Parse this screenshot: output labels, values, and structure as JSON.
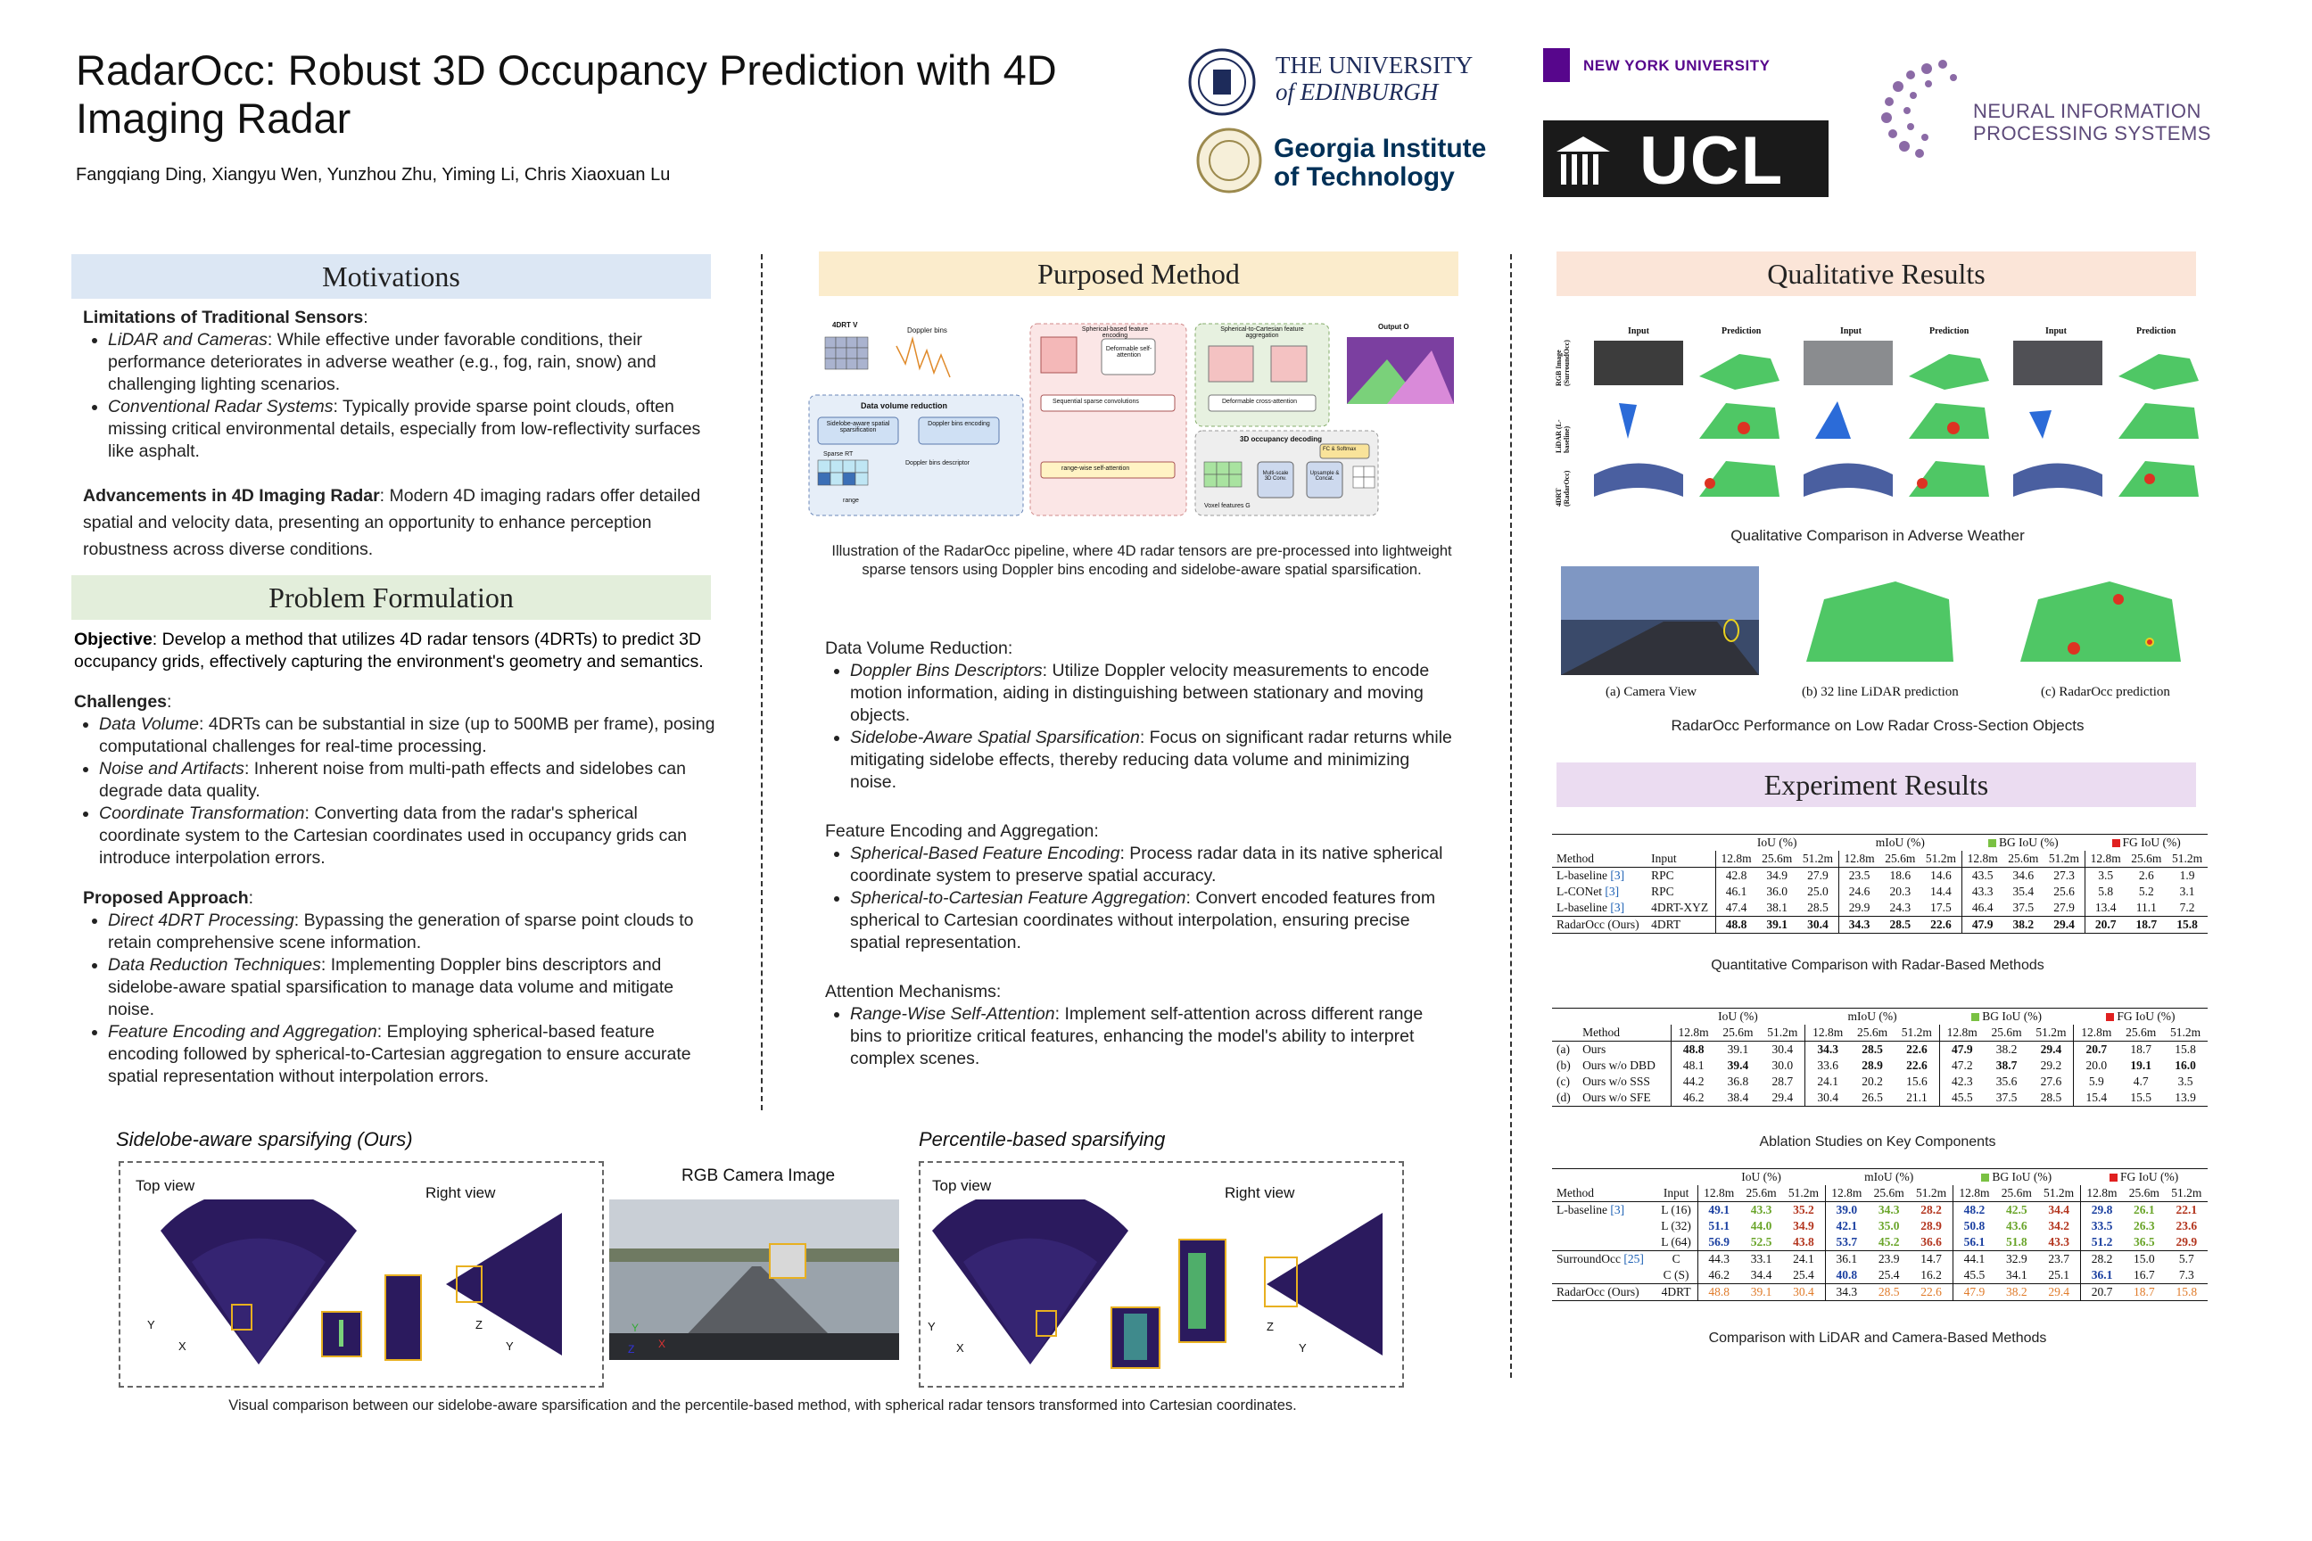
{
  "header": {
    "title": "RadarOcc: Robust 3D Occupancy Prediction with 4D Imaging Radar",
    "authors": "Fangqiang Ding, Xiangyu Wen, Yunzhou Zhu, Yiming Li, Chris Xiaoxuan Lu",
    "logos": {
      "edinburgh_line1": "THE UNIVERSITY",
      "edinburgh_line2": "of EDINBURGH",
      "nyu": "NEW YORK UNIVERSITY",
      "neurips_line1": "NEURAL INFORMATION",
      "neurips_line2": "PROCESSING SYSTEMS",
      "gatech_line1": "Georgia Institute",
      "gatech_line2": "of Technology",
      "ucl": "UCL"
    }
  },
  "motivations": {
    "heading": "Motivations",
    "limitations_title": "Limitations of Traditional Sensors",
    "lidar_term": "LiDAR and Cameras",
    "lidar_text": ": While effective under favorable conditions, their performance deteriorates in adverse weather (e.g., fog, rain, snow) and challenging lighting scenarios.",
    "radar_term": "Conventional Radar Systems",
    "radar_text": ": Typically provide sparse point clouds, often missing critical environmental details, especially from low-reflectivity surfaces like asphalt.",
    "advancements_title": "Advancements in 4D Imaging Radar",
    "advancements_text": ": Modern 4D imaging radars offer detailed spatial and velocity data, presenting an opportunity to enhance perception robustness across diverse conditions."
  },
  "problem": {
    "heading": "Problem Formulation",
    "objective_label": "Objective",
    "objective_text": ": Develop a method that utilizes 4D radar tensors (4DRTs) to predict 3D occupancy grids, effectively capturing the environment's geometry and semantics.",
    "challenges_title": "Challenges",
    "challenges": [
      {
        "term": "Data Volume",
        "text": ": 4DRTs can be substantial in size (up to 500MB per frame), posing computational challenges for real-time processing."
      },
      {
        "term": "Noise and Artifacts",
        "text": ": Inherent noise from multi-path effects and sidelobes can degrade data quality."
      },
      {
        "term": "Coordinate Transformation",
        "text": ": Converting data from the radar's spherical coordinate system to the Cartesian coordinates used in occupancy grids can introduce interpolation errors."
      }
    ],
    "approach_title": "Proposed Approach",
    "approach": [
      {
        "term": "Direct 4DRT Processing",
        "text": ": Bypassing the generation of sparse point clouds to retain comprehensive scene information."
      },
      {
        "term": "Data Reduction Techniques",
        "text": ": Implementing Doppler bins descriptors and sidelobe-aware spatial sparsification to manage data volume and mitigate noise."
      },
      {
        "term": "Feature Encoding and Aggregation",
        "text": ": Employing spherical-based feature encoding followed by spherical-to-Cartesian aggregation to ensure accurate spatial representation without interpolation errors."
      }
    ]
  },
  "method": {
    "heading": "Purposed Method",
    "diagram_labels": {
      "fourdrt": "4DRT V",
      "doppler_bins": "Doppler bins",
      "dvr": "Data volume reduction",
      "sass": "Sidelobe-aware spatial sparsification",
      "dbe": "Doppler bins encoding",
      "sparse_rt": "Sparse RT",
      "dbd": "Doppler bins descriptor",
      "range": "range",
      "sbfe": "Spherical-based feature encoding",
      "dsa": "Deformable self-attention",
      "ssc": "Sequential sparse convolutions",
      "rwsa": "range-wise self-attention",
      "scfa": "Spherical-to-Cartesian feature aggregation",
      "dca": "Deformable cross-attention",
      "output": "Output O",
      "occdec": "3D occupancy decoding",
      "ms3d": "Multi-scale 3D Conv.",
      "upsample": "Upsample & Concat.",
      "fc": "FC & Softmax",
      "voxel": "Voxel features G"
    },
    "diagram_caption": "Illustration of the RadarOcc pipeline, where 4D radar tensors are pre-processed into lightweight sparse tensors using Doppler bins encoding and sidelobe-aware spatial sparsification.",
    "dvr_title": "Data Volume Reduction",
    "dvr_items": [
      {
        "term": "Doppler Bins Descriptors",
        "text": ": Utilize Doppler velocity measurements to encode motion information, aiding in distinguishing between stationary and moving objects."
      },
      {
        "term": "Sidelobe-Aware Spatial Sparsification",
        "text": ": Focus on significant radar returns while mitigating sidelobe effects, thereby reducing data volume and minimizing noise."
      }
    ],
    "fea_title": "Feature Encoding and Aggregation",
    "fea_items": [
      {
        "term": "Spherical-Based Feature Encoding",
        "text": ": Process radar data in its native spherical coordinate system to preserve spatial accuracy."
      },
      {
        "term": "Spherical-to-Cartesian Feature Aggregation",
        "text": ": Convert encoded features from spherical to Cartesian coordinates without interpolation, ensuring precise spatial representation."
      }
    ],
    "att_title": "Attention Mechanisms",
    "att_items": [
      {
        "term": "Range-Wise Self-Attention",
        "text": ": Implement self-attention across different range bins to prioritize critical features, enhancing the model's ability to interpret complex scenes."
      }
    ]
  },
  "bottom": {
    "sidelobe_title": "Sidelobe-aware sparsifying (Ours)",
    "percentile_title": "Percentile-based sparsifying",
    "rgb_title": "RGB Camera Image",
    "top_view": "Top view",
    "right_view": "Right view",
    "axis_x": "X",
    "axis_y": "Y",
    "axis_z": "Z",
    "caption": "Visual comparison between our sidelobe-aware sparsification and the percentile-based method, with spherical radar tensors transformed into Cartesian coordinates."
  },
  "qualitative": {
    "heading": "Qualitative Results",
    "col_input": "Input",
    "col_prediction": "Prediction",
    "row_labels": [
      "RGB Image (SurroundOcc)",
      "LiDAR (L-baseline)",
      "4DRT (RadarOcc)"
    ],
    "caption1": "Qualitative Comparison in Adverse Weather",
    "sub_a": "(a) Camera View",
    "sub_b": "(b) 32 line LiDAR prediction",
    "sub_c": "(c) RadarOcc prediction",
    "caption2": "RadarOcc Performance on Low Radar Cross-Section Objects"
  },
  "experiments": {
    "heading": "Experiment Results",
    "metric_groups": [
      "IoU (%)",
      "mIoU (%)",
      "BG IoU (%)",
      "FG IoU (%)"
    ],
    "ranges": [
      "12.8m",
      "25.6m",
      "51.2m"
    ],
    "col_method": "Method",
    "col_input": "Input",
    "colors": {
      "bg": "#7ac143",
      "fg": "#e02020"
    },
    "table1": {
      "caption": "Quantitative Comparison with Radar-Based Methods",
      "rows": [
        {
          "method": "L-baseline",
          "ref": "[3]",
          "input": "RPC",
          "vals": [
            "42.8",
            "34.9",
            "27.9",
            "23.5",
            "18.6",
            "14.6",
            "43.5",
            "34.6",
            "27.3",
            "3.5",
            "2.6",
            "1.9"
          ]
        },
        {
          "method": "L-CONet",
          "ref": "[3]",
          "input": "RPC",
          "vals": [
            "46.1",
            "36.0",
            "25.0",
            "24.6",
            "20.3",
            "14.4",
            "43.3",
            "35.4",
            "25.6",
            "5.8",
            "5.2",
            "3.1"
          ]
        },
        {
          "method": "L-baseline",
          "ref": "[3]",
          "input": "4DRT-XYZ",
          "vals": [
            "47.4",
            "38.1",
            "28.5",
            "29.9",
            "24.3",
            "17.5",
            "46.4",
            "37.5",
            "27.9",
            "13.4",
            "11.1",
            "7.2"
          ]
        },
        {
          "method": "RadarOcc (Ours)",
          "ref": "",
          "input": "4DRT",
          "vals": [
            "48.8",
            "39.1",
            "30.4",
            "34.3",
            "28.5",
            "22.6",
            "47.9",
            "38.2",
            "29.4",
            "20.7",
            "18.7",
            "15.8"
          ]
        }
      ]
    },
    "table2": {
      "caption": "Ablation Studies on Key Components",
      "rows": [
        {
          "id": "(a)",
          "method": "Ours",
          "vals": [
            "48.8",
            "39.1",
            "30.4",
            "34.3",
            "28.5",
            "22.6",
            "47.9",
            "38.2",
            "29.4",
            "20.7",
            "18.7",
            "15.8"
          ]
        },
        {
          "id": "(b)",
          "method": "Ours w/o DBD",
          "vals": [
            "48.1",
            "39.4",
            "30.0",
            "33.6",
            "28.9",
            "22.6",
            "47.2",
            "38.7",
            "29.2",
            "20.0",
            "19.1",
            "16.0"
          ]
        },
        {
          "id": "(c)",
          "method": "Ours w/o SSS",
          "vals": [
            "44.2",
            "36.8",
            "28.7",
            "24.1",
            "20.2",
            "15.6",
            "42.3",
            "35.6",
            "27.6",
            "5.9",
            "4.7",
            "3.5"
          ]
        },
        {
          "id": "(d)",
          "method": "Ours w/o SFE",
          "vals": [
            "46.2",
            "38.4",
            "29.4",
            "30.4",
            "26.5",
            "21.1",
            "45.5",
            "37.5",
            "28.5",
            "15.4",
            "15.5",
            "13.9"
          ]
        }
      ]
    },
    "table3": {
      "caption": "Comparison with LiDAR and Camera-Based Methods",
      "rows": [
        {
          "method": "L-baseline",
          "ref": "[3]",
          "input": "L (16)",
          "vals": [
            "49.1",
            "43.3",
            "35.2",
            "39.0",
            "34.3",
            "28.2",
            "48.2",
            "42.5",
            "34.4",
            "29.8",
            "26.1",
            "22.1"
          ]
        },
        {
          "method": "",
          "ref": "",
          "input": "L (32)",
          "vals": [
            "51.1",
            "44.0",
            "34.9",
            "42.1",
            "35.0",
            "28.9",
            "50.8",
            "43.6",
            "34.2",
            "33.5",
            "26.3",
            "23.6"
          ]
        },
        {
          "method": "",
          "ref": "",
          "input": "L (64)",
          "vals": [
            "56.9",
            "52.5",
            "43.8",
            "53.7",
            "45.2",
            "36.6",
            "56.1",
            "51.8",
            "43.3",
            "51.2",
            "36.5",
            "29.9"
          ]
        },
        {
          "method": "SurroundOcc",
          "ref": "[25]",
          "input": "C",
          "vals": [
            "44.3",
            "33.1",
            "24.1",
            "36.1",
            "23.9",
            "14.7",
            "44.1",
            "32.9",
            "23.7",
            "28.2",
            "15.0",
            "5.7"
          ]
        },
        {
          "method": "",
          "ref": "",
          "input": "C (S)",
          "vals": [
            "46.2",
            "34.4",
            "25.4",
            "40.8",
            "25.4",
            "16.2",
            "45.5",
            "34.1",
            "25.1",
            "36.1",
            "16.7",
            "7.3"
          ]
        },
        {
          "method": "RadarOcc (Ours)",
          "ref": "",
          "input": "4DRT",
          "vals": [
            "48.8",
            "39.1",
            "30.4",
            "34.3",
            "28.5",
            "22.6",
            "47.9",
            "38.2",
            "29.4",
            "20.7",
            "18.7",
            "15.8"
          ]
        }
      ]
    }
  }
}
